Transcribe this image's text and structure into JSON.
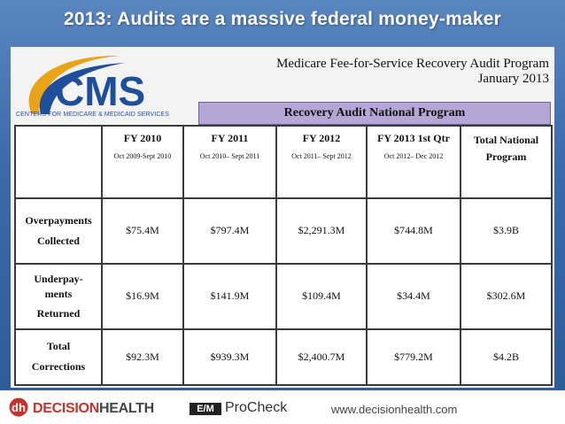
{
  "slide": {
    "title": "2013: Audits are a massive federal money-maker"
  },
  "logo": {
    "brand": "CMS",
    "subtitle": "CENTERS FOR MEDICARE & MEDICAID SERVICES"
  },
  "program": {
    "title": "Medicare Fee-for-Service Recovery Audit Program",
    "date": "January 2013",
    "band": "Recovery Audit National Program"
  },
  "table": {
    "columns": [
      {
        "head": "FY 2010",
        "range": "Oct 2009-Sept 2010"
      },
      {
        "head": "FY 2011",
        "range": "Oct 2010– Sept 2011"
      },
      {
        "head": "FY 2012",
        "range": "Oct 2011– Sept 2012"
      },
      {
        "head": "FY 2013 1st Qtr",
        "range": "Oct 2012– Dec 2012"
      },
      {
        "head": "Total National Program",
        "range": ""
      }
    ],
    "rows": [
      {
        "label_1": "Overpayments",
        "label_2": "Collected",
        "label_3": "",
        "values": [
          "$75.4M",
          "$797.4M",
          "$2,291.3M",
          "$744.8M",
          "$3.9B"
        ]
      },
      {
        "label_1": "Underpay-",
        "label_2": "ments",
        "label_3": "Returned",
        "values": [
          "$16.9M",
          "$141.9M",
          "$109.4M",
          "$34.4M",
          "$302.6M"
        ]
      },
      {
        "label_1": "Total",
        "label_2": "Corrections",
        "label_3": "",
        "values": [
          "$92.3M",
          "$939.3M",
          "$2,400.7M",
          "$779.2M",
          "$4.2B"
        ]
      }
    ]
  },
  "footer": {
    "brand_a": "DECISION",
    "brand_b": "HEALTH",
    "em": "E/M",
    "procheck": "ProCheck",
    "website": "www.decisionhealth.com"
  },
  "colors": {
    "title_bg": "#3a6aa8",
    "cms_blue": "#1f4f9a",
    "band_purple": "#b4a7d6",
    "dh_red": "#c2342b"
  }
}
